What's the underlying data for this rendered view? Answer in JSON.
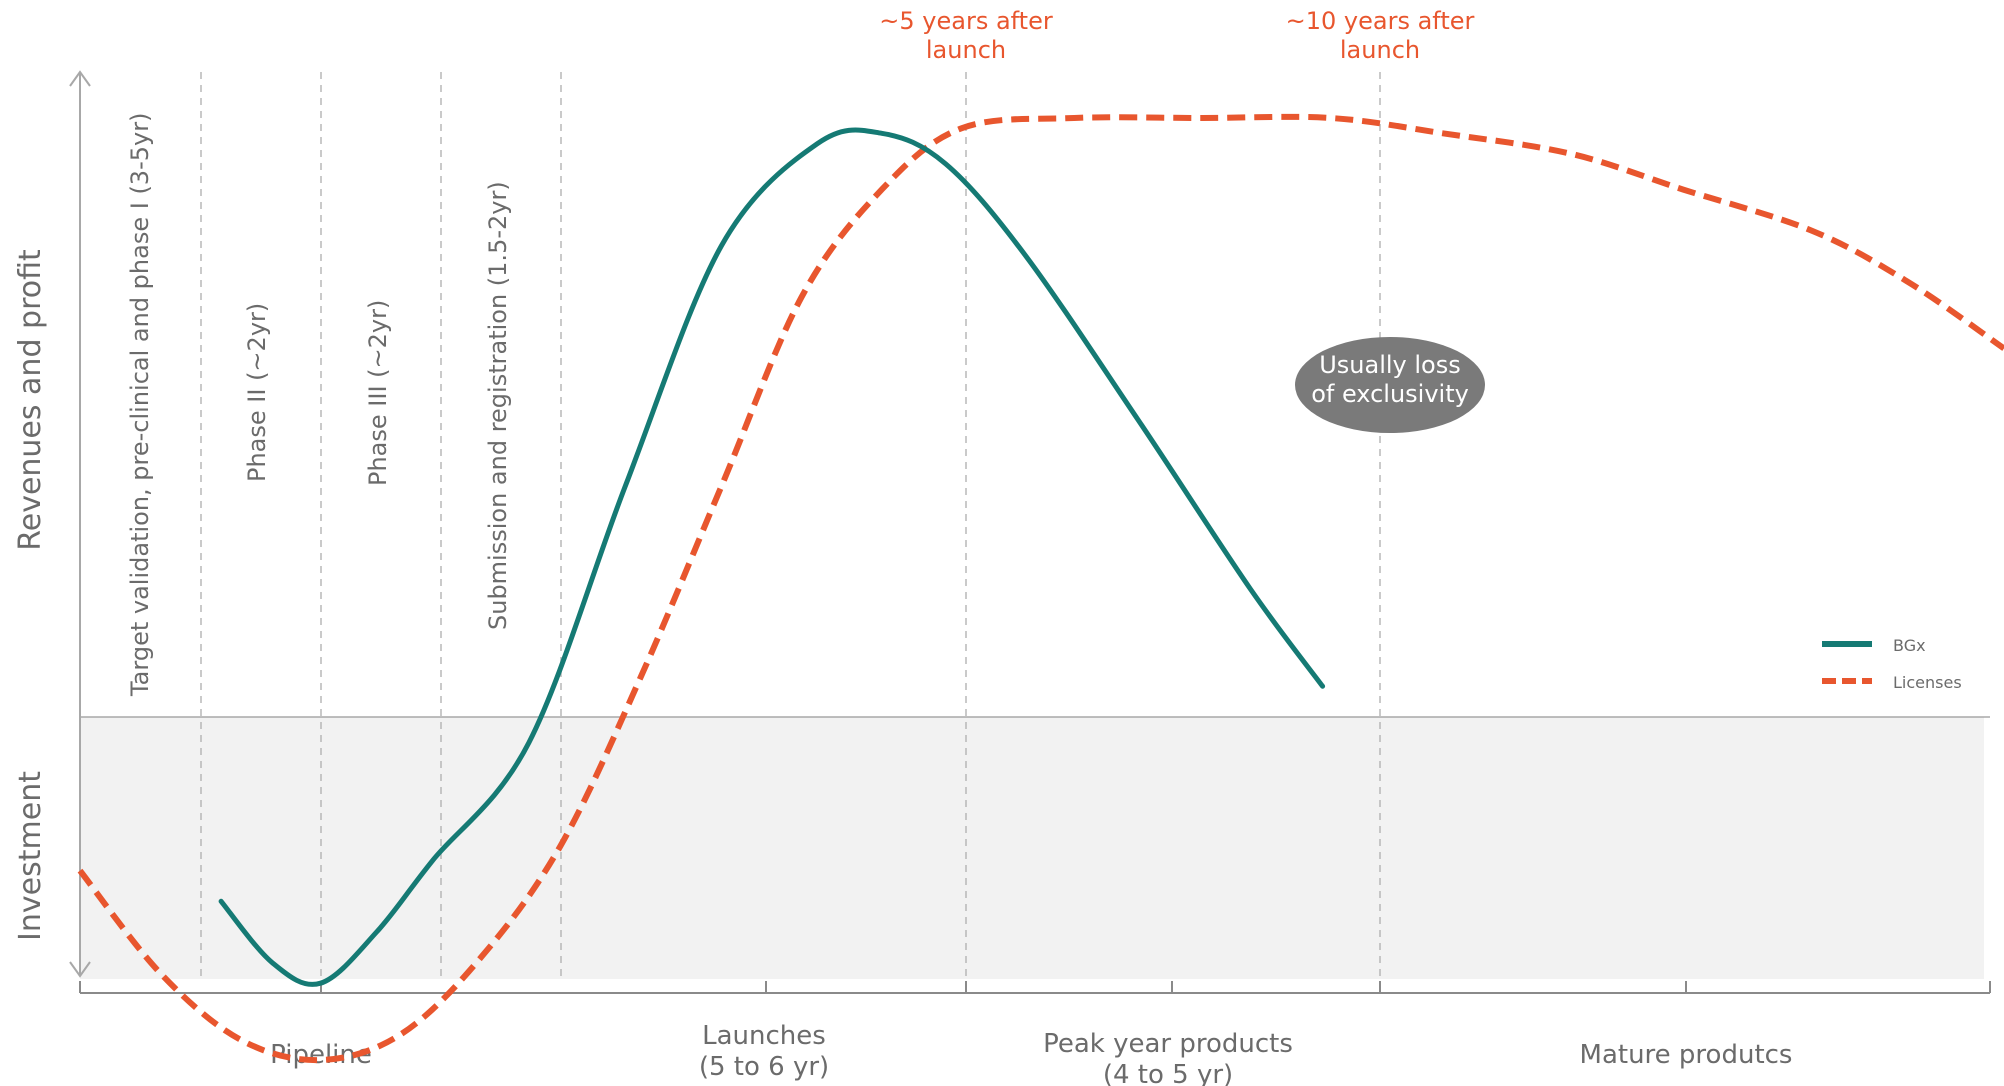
{
  "colors": {
    "bgx": "#157a74",
    "licenses": "#e8562e",
    "investment_band": "#f2f2f2",
    "axis": "#a8a8a8",
    "label": "#6b6b6b",
    "bubble": "#7a7a7a"
  },
  "chart_data": {
    "type": "line",
    "ylabel_upper": "Revenues and profit",
    "ylabel_lower": "Investment",
    "x_axis": {
      "categories": [
        "Pipeline",
        "Launches\n(5 to 6 yr)",
        "Peak year products\n(4 to 5 yr)",
        "Mature produtcs"
      ]
    },
    "phases": [
      "Target validation, pre-clinical and phase I (3-5yr)",
      "Phase II (~2yr)",
      "Phase III (~2yr)",
      "Submission and registration  (1.5-2yr)"
    ],
    "annotations": {
      "five_years": "~5 years after\nlaunch",
      "ten_years": "~10 years after\nlaunch",
      "bubble": "Usually loss\nof exclusivity"
    },
    "legend": {
      "placement": "right",
      "entries": [
        "BGx",
        "Licenses"
      ]
    },
    "series": [
      {
        "name": "BGx",
        "style": "solid",
        "points": [
          [
            0.88,
            -0.36
          ],
          [
            1.2,
            -0.48
          ],
          [
            1.5,
            -0.52
          ],
          [
            1.85,
            -0.42
          ],
          [
            2.2,
            -0.28
          ],
          [
            2.8,
            -0.05
          ],
          [
            3.4,
            0.45
          ],
          [
            4.0,
            0.92
          ],
          [
            4.6,
            1.12
          ],
          [
            5.0,
            1.14
          ],
          [
            5.4,
            1.08
          ],
          [
            5.9,
            0.9
          ],
          [
            6.6,
            0.58
          ],
          [
            7.3,
            0.25
          ],
          [
            7.75,
            0.06
          ]
        ]
      },
      {
        "name": "Licenses",
        "style": "dashed",
        "points": [
          [
            0,
            -0.3
          ],
          [
            0.5,
            -0.5
          ],
          [
            1.0,
            -0.63
          ],
          [
            1.5,
            -0.67
          ],
          [
            2.0,
            -0.62
          ],
          [
            2.5,
            -0.47
          ],
          [
            3.0,
            -0.25
          ],
          [
            3.5,
            0.08
          ],
          [
            4.0,
            0.45
          ],
          [
            4.5,
            0.82
          ],
          [
            5.0,
            1.03
          ],
          [
            5.5,
            1.15
          ],
          [
            6.2,
            1.17
          ],
          [
            7.0,
            1.17
          ],
          [
            7.8,
            1.17
          ],
          [
            8.5,
            1.14
          ],
          [
            9.3,
            1.1
          ],
          [
            10.0,
            1.03
          ],
          [
            10.8,
            0.95
          ],
          [
            11.4,
            0.85
          ],
          [
            12.0,
            0.72
          ]
        ]
      }
    ]
  }
}
